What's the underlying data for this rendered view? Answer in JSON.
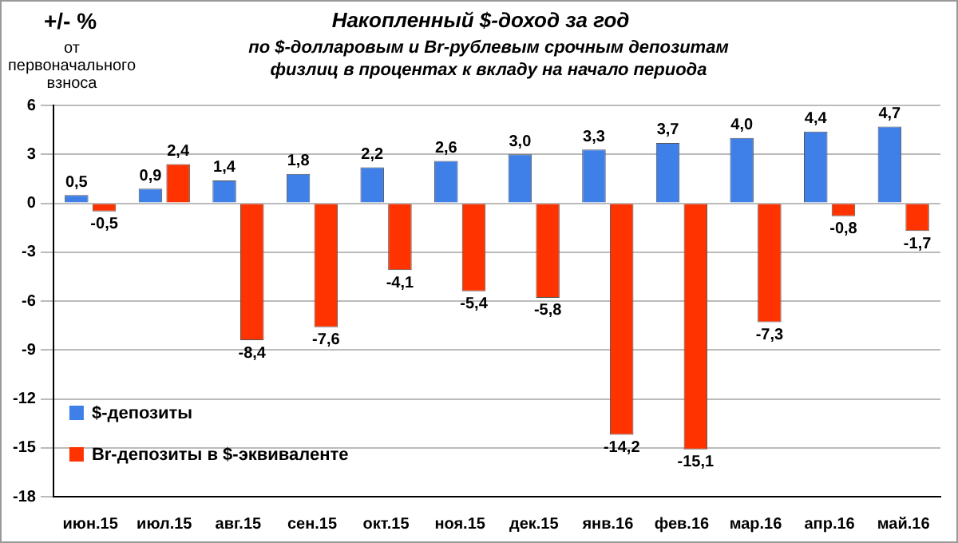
{
  "chart_data": {
    "type": "bar",
    "title": "Накопленный $-доход за год",
    "subtitle": "по $-долларовым и Br-рублевым срочным депозитам физлиц в процентах к вкладу на начало периода",
    "ylabel": "+/- %",
    "annotations": [
      "от первоначального взноса"
    ],
    "categories": [
      "июн.15",
      "июл.15",
      "авг.15",
      "сен.15",
      "окт.15",
      "ноя.15",
      "дек.15",
      "янв.16",
      "фев.16",
      "мар.16",
      "апр.16",
      "май.16"
    ],
    "series": [
      {
        "name": "$-депозиты",
        "color": "#3f7fe8",
        "values": [
          0.5,
          0.9,
          1.4,
          1.8,
          2.2,
          2.6,
          3.0,
          3.3,
          3.7,
          4.0,
          4.4,
          4.7
        ],
        "value_labels": [
          "0,5",
          "0,9",
          "1,4",
          "1,8",
          "2,2",
          "2,6",
          "3,0",
          "3,3",
          "3,7",
          "4,0",
          "4,4",
          "4,7"
        ]
      },
      {
        "name": "Br-депозиты в $-эквиваленте",
        "color": "#ff3300",
        "values": [
          -0.5,
          2.4,
          -8.4,
          -7.6,
          -4.1,
          -5.4,
          -5.8,
          -14.2,
          -15.1,
          -7.3,
          -0.8,
          -1.7
        ],
        "value_labels": [
          "-0,5",
          "2,4",
          "-8,4",
          "-7,6",
          "-4,1",
          "-5,4",
          "-5,8",
          "-14,2",
          "-15,1",
          "-7,3",
          "-0,8",
          "-1,7"
        ]
      }
    ],
    "ylim": [
      -18,
      6
    ],
    "yticks": [
      -18,
      -15,
      -12,
      -9,
      -6,
      -3,
      0,
      3,
      6
    ],
    "grid": "y",
    "legend": "bottom left"
  }
}
